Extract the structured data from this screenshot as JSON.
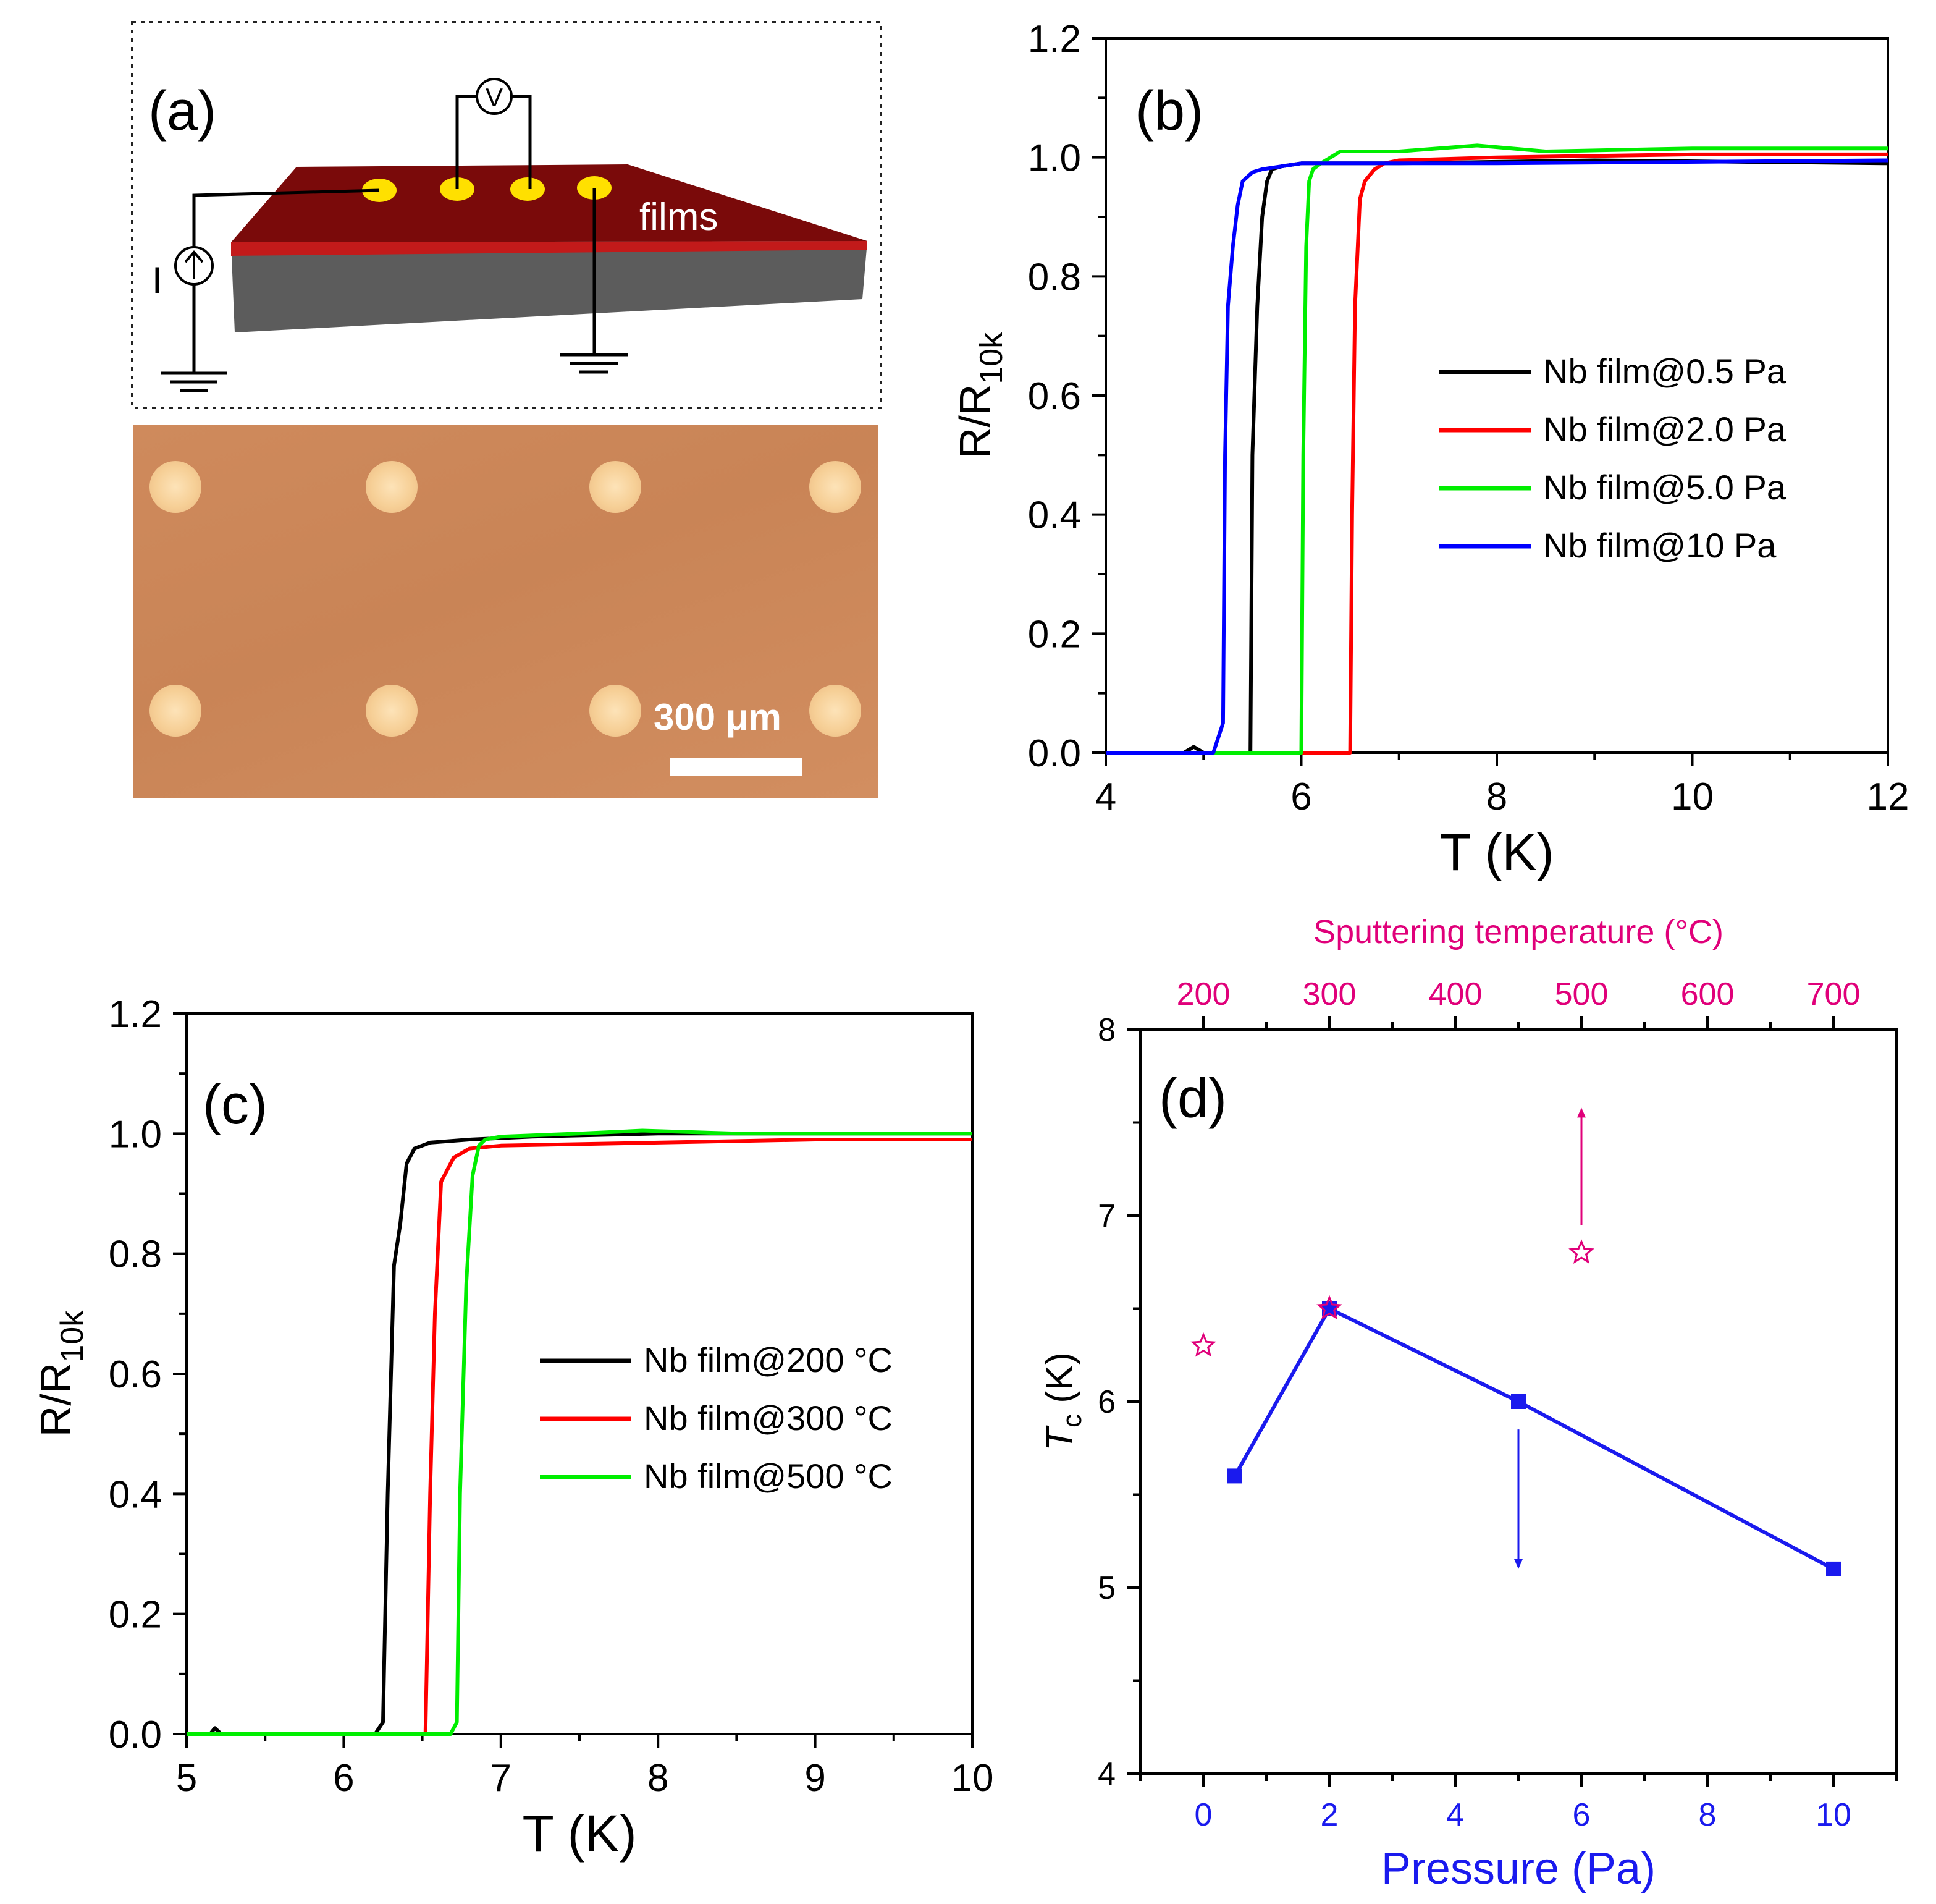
{
  "panel_a": {
    "label": "(a)",
    "voltmeter": "V",
    "current": "I",
    "films_label": "films",
    "scale_bar": "300 μm"
  },
  "chart_data": [
    {
      "panel": "b",
      "type": "line",
      "label": "(b)",
      "xlabel": "T (K)",
      "ylabel_main": "R/R",
      "ylabel_sub": "10k",
      "xlim": [
        4,
        12
      ],
      "ylim": [
        0,
        1.2
      ],
      "xticks": [
        "4",
        "6",
        "8",
        "10",
        "12"
      ],
      "yticks": [
        "0.0",
        "0.2",
        "0.4",
        "0.6",
        "0.8",
        "1.0",
        "1.2"
      ],
      "legend_position": "right",
      "series": [
        {
          "name": "Nb film@0.5 Pa",
          "color": "#000000",
          "x": [
            4.0,
            4.8,
            4.9,
            5.0,
            5.48,
            5.5,
            5.55,
            5.6,
            5.65,
            5.7,
            5.8,
            6.0,
            7.0,
            9.0,
            12.0
          ],
          "y": [
            0.0,
            0.0,
            0.01,
            0.0,
            0.0,
            0.5,
            0.75,
            0.9,
            0.96,
            0.98,
            0.985,
            0.99,
            0.99,
            0.995,
            0.99
          ]
        },
        {
          "name": "Nb film@2.0 Pa",
          "color": "#ff0000",
          "x": [
            4.0,
            6.5,
            6.52,
            6.55,
            6.6,
            6.65,
            6.75,
            6.85,
            7.0,
            8.0,
            10.0,
            12.0
          ],
          "y": [
            0.0,
            0.0,
            0.4,
            0.75,
            0.93,
            0.96,
            0.98,
            0.99,
            0.995,
            1.0,
            1.005,
            1.005
          ]
        },
        {
          "name": "Nb film@5.0 Pa",
          "color": "#00ee00",
          "x": [
            4.0,
            6.0,
            6.02,
            6.05,
            6.08,
            6.12,
            6.2,
            6.3,
            6.4,
            7.0,
            7.8,
            8.5,
            10.0,
            12.0
          ],
          "y": [
            0.0,
            0.0,
            0.5,
            0.85,
            0.96,
            0.98,
            0.99,
            1.0,
            1.01,
            1.01,
            1.02,
            1.01,
            1.015,
            1.015
          ]
        },
        {
          "name": "Nb film@10 Pa",
          "color": "#0000ff",
          "x": [
            4.0,
            5.1,
            5.2,
            5.22,
            5.25,
            5.3,
            5.35,
            5.4,
            5.5,
            5.6,
            5.8,
            6.0,
            8.0,
            12.0
          ],
          "y": [
            0.0,
            0.0,
            0.05,
            0.5,
            0.75,
            0.85,
            0.92,
            0.96,
            0.975,
            0.98,
            0.985,
            0.99,
            0.99,
            0.995
          ]
        }
      ]
    },
    {
      "panel": "c",
      "type": "line",
      "label": "(c)",
      "xlabel": "T (K)",
      "ylabel_main": "R/R",
      "ylabel_sub": "10k",
      "xlim": [
        5,
        10
      ],
      "ylim": [
        0,
        1.2
      ],
      "xticks": [
        "5",
        "6",
        "7",
        "8",
        "9",
        "10"
      ],
      "yticks": [
        "0.0",
        "0.2",
        "0.4",
        "0.6",
        "0.8",
        "1.0",
        "1.2"
      ],
      "legend_position": "right",
      "series": [
        {
          "name": "Nb film@200 °C",
          "color": "#000000",
          "x": [
            5.0,
            5.15,
            5.18,
            5.22,
            6.2,
            6.25,
            6.28,
            6.32,
            6.36,
            6.4,
            6.45,
            6.55,
            6.8,
            7.2,
            8.0,
            10.0
          ],
          "y": [
            0.0,
            0.0,
            0.01,
            0.0,
            0.0,
            0.02,
            0.4,
            0.78,
            0.85,
            0.95,
            0.975,
            0.985,
            0.99,
            0.995,
            1.0,
            1.0
          ]
        },
        {
          "name": "Nb film@300 °C",
          "color": "#ff0000",
          "x": [
            5.0,
            6.52,
            6.55,
            6.58,
            6.62,
            6.7,
            6.8,
            7.0,
            8.0,
            9.0,
            10.0
          ],
          "y": [
            0.0,
            0.0,
            0.4,
            0.7,
            0.92,
            0.96,
            0.975,
            0.98,
            0.985,
            0.99,
            0.99
          ]
        },
        {
          "name": "Nb film@500 °C",
          "color": "#00ee00",
          "x": [
            5.0,
            6.68,
            6.72,
            6.74,
            6.78,
            6.82,
            6.86,
            6.9,
            7.0,
            7.5,
            7.9,
            8.5,
            10.0
          ],
          "y": [
            0.0,
            0.0,
            0.02,
            0.4,
            0.75,
            0.93,
            0.98,
            0.99,
            0.995,
            1.0,
            1.005,
            1.0,
            1.0
          ]
        }
      ]
    },
    {
      "panel": "d",
      "type": "scatter",
      "label": "(d)",
      "xlabel": "Pressure (Pa)",
      "x2label": "Sputtering temperature (°C)",
      "ylabel_main": "T",
      "ylabel_sub": "c",
      "ylabel_unit": " (K)",
      "xlim": [
        -1,
        11
      ],
      "ylim": [
        4,
        8
      ],
      "x2lim": [
        150,
        750
      ],
      "xticks": [
        "0",
        "2",
        "4",
        "6",
        "8",
        "10"
      ],
      "x2ticks": [
        "200",
        "300",
        "400",
        "500",
        "600",
        "700"
      ],
      "yticks": [
        "4",
        "5",
        "6",
        "7",
        "8"
      ],
      "series": [
        {
          "name": "",
          "axis": "bottom",
          "marker": "square",
          "connected": true,
          "color": "#1a1aee",
          "x": [
            0.5,
            2.0,
            5.0,
            10.0
          ],
          "y": [
            5.6,
            6.5,
            6.0,
            5.1
          ]
        },
        {
          "name": "",
          "axis": "top",
          "marker": "star",
          "connected": false,
          "color": "#e0007a",
          "x": [
            200,
            300,
            500
          ],
          "y": [
            6.3,
            6.5,
            6.8
          ]
        }
      ]
    }
  ]
}
